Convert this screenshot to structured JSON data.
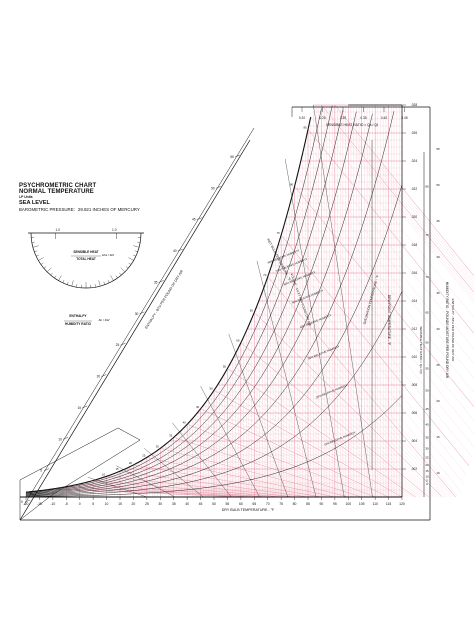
{
  "header": {
    "title_line1": "PSYCHROMETRIC CHART",
    "title_line2": "NORMAL TEMPERATURE",
    "units": "I-P Units",
    "sea_level": "SEA LEVEL",
    "barometric_label": "BAROMETRIC PRESSURE:",
    "barometric_value": "29.921 INCHES OF MERCURY"
  },
  "protractor": {
    "top_left": "1.0",
    "top_right": "1.0",
    "sensible_label": "SENSIBLE HEAT",
    "total_label": "TOTAL HEAT",
    "symbol_label": "Δhs / Δht",
    "enthalpy_label": "ENTHALPY",
    "humidity_label": "HUMIDITY RATIO",
    "enthalpy_symbol": "Δh / ΔW"
  },
  "chart_data": {
    "type": "psychrometric",
    "xlabel": "DRY BULB TEMPERATURE - °F",
    "x_ticks": [
      -20,
      -15,
      -10,
      -5,
      0,
      5,
      10,
      15,
      20,
      25,
      30,
      35,
      40,
      45,
      50,
      55,
      60,
      65,
      70,
      75,
      80,
      85,
      90,
      95,
      100,
      105,
      110,
      115,
      120
    ],
    "xlim": [
      -20,
      120
    ],
    "right_axis_label": "HUMIDITY RATIO - POUNDS MOISTURE PER POUND DRY AIR",
    "right_axis_ticks": [
      ".002",
      ".004",
      ".006",
      ".008",
      ".010",
      ".012",
      ".014",
      ".016",
      ".018",
      ".020",
      ".022",
      ".024",
      ".026",
      ".028"
    ],
    "dewpoint_label": "DEW POINT TEMPERATURE - °F",
    "dewpoint_ticks": [
      80,
      75,
      70,
      65,
      60,
      55,
      50,
      45,
      40,
      35,
      30,
      25,
      20,
      15,
      10,
      5,
      0
    ],
    "shr_label": "SENSIBLE HEAT RATIO = Qs / Qt",
    "shr_ticks": [
      "0.20",
      "0.25",
      "0.30",
      "0.35",
      "0.40",
      "0.45"
    ],
    "shr_side_label": "SENSIBLE HEAT RATIO = Qs / Qt",
    "left_enthalpy_label": "ENTHALPY - BTU PER POUND OF DRY AIR",
    "left_enthalpy_ticks": [
      0,
      5,
      10,
      15,
      20,
      25,
      30,
      35,
      40,
      45,
      50,
      55
    ],
    "right_enthalpy_label": "ENTHALPY - BTU PER POUND OF DRY AIR",
    "right_enthalpy_ticks": [
      55,
      50,
      45,
      40,
      35,
      30,
      25,
      20,
      15,
      10
    ],
    "wet_bulb_label": "WET BULB TEMPERATURE - °F",
    "saturation_label": "SATURATION TEMPERATURE - °F",
    "specific_volume_label": "VOLUME - CU.FT PER POUND DRY AIR",
    "relative_humidity": [
      10,
      20,
      30,
      40,
      50,
      60,
      70,
      80,
      90,
      100
    ],
    "rh_label": "% RELATIVE HUMIDITY",
    "grid": true,
    "grid_color": "#e0708a"
  }
}
